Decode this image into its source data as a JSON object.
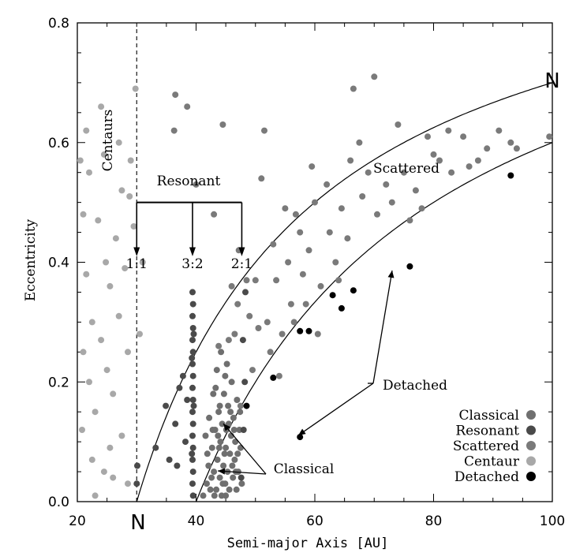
{
  "chart_data": {
    "type": "scatter",
    "xlabel": "Semi-major Axis [AU]",
    "ylabel": "Eccentricity",
    "xlim": [
      20,
      100
    ],
    "ylim": [
      0,
      0.8
    ],
    "xticks": [
      20,
      40,
      60,
      80,
      100
    ],
    "yticks": [
      0.0,
      0.2,
      0.4,
      0.6,
      0.8
    ],
    "xtick_labels": [
      "20",
      "40",
      "60",
      "80",
      "100"
    ],
    "ytick_labels": [
      "0.0",
      "0.2",
      "0.4",
      "0.6",
      "0.8"
    ],
    "grid": false,
    "legend_position": "bottom-right",
    "series": [
      {
        "name": "Classical",
        "color": "#6f6f6f",
        "points": [
          [
            41.2,
            0.01
          ],
          [
            41.8,
            0.03
          ],
          [
            42.1,
            0.06
          ],
          [
            42.4,
            0.02
          ],
          [
            42.7,
            0.09
          ],
          [
            43.0,
            0.05
          ],
          [
            43.2,
            0.12
          ],
          [
            43.4,
            0.02
          ],
          [
            43.6,
            0.07
          ],
          [
            43.8,
            0.15
          ],
          [
            44.0,
            0.04
          ],
          [
            44.1,
            0.1
          ],
          [
            44.3,
            0.01
          ],
          [
            44.4,
            0.13
          ],
          [
            44.6,
            0.06
          ],
          [
            44.7,
            0.18
          ],
          [
            44.9,
            0.03
          ],
          [
            45.0,
            0.09
          ],
          [
            45.1,
            0.12
          ],
          [
            45.3,
            0.05
          ],
          [
            45.4,
            0.16
          ],
          [
            45.6,
            0.02
          ],
          [
            45.7,
            0.08
          ],
          [
            45.9,
            0.11
          ],
          [
            46.0,
            0.2
          ],
          [
            46.2,
            0.04
          ],
          [
            46.3,
            0.14
          ],
          [
            46.5,
            0.07
          ],
          [
            46.6,
            0.1
          ],
          [
            46.8,
            0.02
          ],
          [
            46.9,
            0.17
          ],
          [
            47.1,
            0.05
          ],
          [
            47.3,
            0.12
          ],
          [
            47.5,
            0.09
          ],
          [
            47.7,
            0.03
          ],
          [
            43.5,
            0.22
          ],
          [
            44.2,
            0.25
          ],
          [
            45.2,
            0.23
          ],
          [
            42.9,
            0.18
          ],
          [
            43.1,
            0.01
          ],
          [
            44.8,
            0.08
          ],
          [
            45.5,
            0.13
          ],
          [
            46.1,
            0.06
          ],
          [
            41.6,
            0.11
          ],
          [
            42.2,
            0.14
          ],
          [
            43.9,
            0.09
          ],
          [
            44.5,
            0.03
          ],
          [
            45.8,
            0.15
          ],
          [
            46.4,
            0.12
          ],
          [
            47.0,
            0.08
          ],
          [
            42.6,
            0.04
          ],
          [
            43.3,
            0.19
          ],
          [
            44.0,
            0.16
          ],
          [
            45.0,
            0.01
          ],
          [
            46.7,
            0.05
          ],
          [
            47.4,
            0.15
          ],
          [
            43.7,
            0.11
          ],
          [
            44.9,
            0.21
          ],
          [
            41.9,
            0.08
          ],
          [
            42.8,
            0.12
          ]
        ]
      },
      {
        "name": "Resonant",
        "color": "#4a4a4a",
        "points": [
          [
            39.4,
            0.35
          ],
          [
            39.5,
            0.33
          ],
          [
            39.4,
            0.31
          ],
          [
            39.5,
            0.29
          ],
          [
            39.4,
            0.27
          ],
          [
            39.5,
            0.25
          ],
          [
            39.4,
            0.23
          ],
          [
            39.5,
            0.21
          ],
          [
            39.4,
            0.19
          ],
          [
            39.5,
            0.17
          ],
          [
            39.4,
            0.15
          ],
          [
            39.5,
            0.13
          ],
          [
            39.4,
            0.11
          ],
          [
            39.5,
            0.09
          ],
          [
            39.4,
            0.07
          ],
          [
            39.5,
            0.05
          ],
          [
            39.4,
            0.03
          ],
          [
            39.5,
            0.01
          ],
          [
            39.3,
            0.24
          ],
          [
            39.6,
            0.16
          ],
          [
            39.3,
            0.08
          ],
          [
            39.6,
            0.28
          ],
          [
            38.5,
            0.17
          ],
          [
            38.2,
            0.1
          ],
          [
            37.8,
            0.21
          ],
          [
            36.8,
            0.06
          ],
          [
            36.5,
            0.13
          ],
          [
            35.5,
            0.07
          ],
          [
            34.9,
            0.16
          ],
          [
            33.2,
            0.09
          ],
          [
            37.2,
            0.19
          ],
          [
            30.1,
            0.06
          ],
          [
            30.0,
            0.03
          ],
          [
            47.6,
            0.04
          ],
          [
            48.0,
            0.12
          ],
          [
            47.9,
            0.27
          ],
          [
            48.2,
            0.2
          ],
          [
            48.3,
            0.35
          ]
        ]
      },
      {
        "name": "Scattered",
        "color": "#7a7a7a",
        "points": [
          [
            36.5,
            0.68
          ],
          [
            38.5,
            0.66
          ],
          [
            36.3,
            0.62
          ],
          [
            40.0,
            0.53
          ],
          [
            43.0,
            0.48
          ],
          [
            44.5,
            0.63
          ],
          [
            51.0,
            0.54
          ],
          [
            51.5,
            0.62
          ],
          [
            53.0,
            0.43
          ],
          [
            53.5,
            0.37
          ],
          [
            52.0,
            0.3
          ],
          [
            52.5,
            0.25
          ],
          [
            50.0,
            0.37
          ],
          [
            50.5,
            0.29
          ],
          [
            49.5,
            0.22
          ],
          [
            55.0,
            0.49
          ],
          [
            55.5,
            0.4
          ],
          [
            56.0,
            0.33
          ],
          [
            54.5,
            0.28
          ],
          [
            57.5,
            0.45
          ],
          [
            58.0,
            0.38
          ],
          [
            59.0,
            0.42
          ],
          [
            60.0,
            0.5
          ],
          [
            61.0,
            0.36
          ],
          [
            62.0,
            0.53
          ],
          [
            62.5,
            0.45
          ],
          [
            63.5,
            0.4
          ],
          [
            64.5,
            0.49
          ],
          [
            65.5,
            0.44
          ],
          [
            66.0,
            0.57
          ],
          [
            66.5,
            0.69
          ],
          [
            68.0,
            0.51
          ],
          [
            69.0,
            0.55
          ],
          [
            70.0,
            0.71
          ],
          [
            70.5,
            0.48
          ],
          [
            72.0,
            0.53
          ],
          [
            73.0,
            0.5
          ],
          [
            74.0,
            0.63
          ],
          [
            75.0,
            0.55
          ],
          [
            76.0,
            0.47
          ],
          [
            77.0,
            0.52
          ],
          [
            78.0,
            0.49
          ],
          [
            79.0,
            0.61
          ],
          [
            80.0,
            0.58
          ],
          [
            81.0,
            0.57
          ],
          [
            82.5,
            0.62
          ],
          [
            83.0,
            0.55
          ],
          [
            85.0,
            0.61
          ],
          [
            86.0,
            0.56
          ],
          [
            87.5,
            0.57
          ],
          [
            89.0,
            0.59
          ],
          [
            91.0,
            0.62
          ],
          [
            93.0,
            0.6
          ],
          [
            94.0,
            0.59
          ],
          [
            99.5,
            0.61
          ],
          [
            46.5,
            0.28
          ],
          [
            47.0,
            0.33
          ],
          [
            48.5,
            0.37
          ],
          [
            49.0,
            0.31
          ],
          [
            54.0,
            0.21
          ],
          [
            56.5,
            0.3
          ],
          [
            58.5,
            0.33
          ],
          [
            60.5,
            0.28
          ],
          [
            43.8,
            0.26
          ],
          [
            45.5,
            0.27
          ],
          [
            47.5,
            0.16
          ],
          [
            46.0,
            0.36
          ],
          [
            47.2,
            0.42
          ],
          [
            56.8,
            0.48
          ],
          [
            59.5,
            0.56
          ],
          [
            64.0,
            0.37
          ],
          [
            67.5,
            0.6
          ]
        ]
      },
      {
        "name": "Centaur",
        "color": "#a8a8a8",
        "points": [
          [
            20.5,
            0.57
          ],
          [
            21.0,
            0.48
          ],
          [
            22.0,
            0.55
          ],
          [
            21.5,
            0.38
          ],
          [
            22.5,
            0.3
          ],
          [
            21.0,
            0.25
          ],
          [
            22.0,
            0.2
          ],
          [
            23.0,
            0.15
          ],
          [
            20.8,
            0.12
          ],
          [
            22.5,
            0.07
          ],
          [
            24.0,
            0.66
          ],
          [
            24.5,
            0.58
          ],
          [
            23.5,
            0.47
          ],
          [
            24.8,
            0.4
          ],
          [
            25.5,
            0.36
          ],
          [
            24.0,
            0.27
          ],
          [
            25.0,
            0.22
          ],
          [
            26.0,
            0.18
          ],
          [
            24.5,
            0.05
          ],
          [
            23.0,
            0.01
          ],
          [
            27.0,
            0.6
          ],
          [
            27.5,
            0.52
          ],
          [
            26.5,
            0.44
          ],
          [
            28.0,
            0.39
          ],
          [
            27.0,
            0.31
          ],
          [
            28.5,
            0.25
          ],
          [
            27.5,
            0.11
          ],
          [
            26.0,
            0.04
          ],
          [
            29.8,
            0.69
          ],
          [
            29.0,
            0.57
          ],
          [
            28.8,
            0.51
          ],
          [
            29.5,
            0.46
          ],
          [
            28.5,
            0.03
          ],
          [
            21.5,
            0.62
          ],
          [
            25.5,
            0.09
          ],
          [
            30.5,
            0.28
          ],
          [
            31.0,
            0.4
          ]
        ]
      },
      {
        "name": "Detached",
        "color": "#000000",
        "points": [
          [
            93.0,
            0.545
          ],
          [
            76.0,
            0.393
          ],
          [
            66.5,
            0.353
          ],
          [
            63.0,
            0.345
          ],
          [
            64.5,
            0.323
          ],
          [
            59.0,
            0.285
          ],
          [
            57.5,
            0.285
          ],
          [
            53.0,
            0.207
          ],
          [
            48.5,
            0.16
          ],
          [
            57.5,
            0.108
          ]
        ]
      }
    ],
    "curves": [
      {
        "label": "N",
        "type": "perihelion",
        "q": 30
      },
      {
        "label": "",
        "type": "perihelion",
        "q": 40
      }
    ],
    "resonances": [
      {
        "label": "1:1",
        "x": 30
      },
      {
        "label": "3:2",
        "x": 39.4
      },
      {
        "label": "2:1",
        "x": 47.7
      }
    ],
    "annotations": {
      "centaurs": "Centaurs",
      "resonant": "Resonant",
      "scattered": "Scattered",
      "detached": "Detached",
      "classical": "Classical",
      "n_bottom": "N",
      "n_top": "N"
    }
  }
}
